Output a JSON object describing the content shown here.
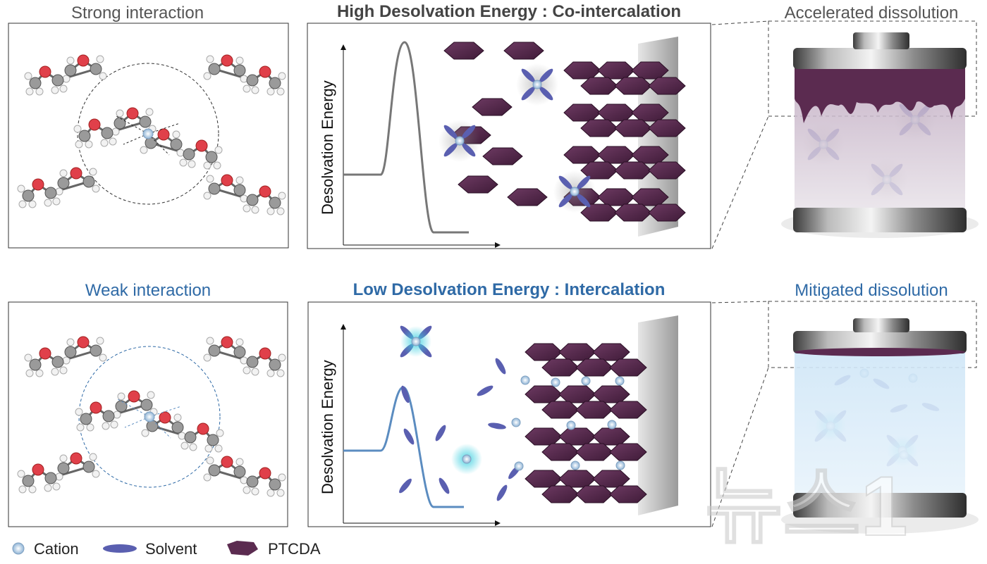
{
  "top": {
    "left_title": "Strong interaction",
    "center_title": "High Desolvation Energy : Co-intercalation",
    "right_title": "Accelerated dissolution",
    "axis_label": "Desolvation  Energy"
  },
  "bottom": {
    "left_title": "Weak interaction",
    "center_title": "Low Desolvation Energy : Intercalation",
    "right_title": "Mitigated dissolution",
    "axis_label": "Desolvation  Energy"
  },
  "legend": {
    "cation": "Cation",
    "solvent": "Solvent",
    "ptcda": "PTCDA"
  },
  "watermark": "뉴스1",
  "colors": {
    "ptcda": "#5b2b50",
    "solvent": "#5a5fb0",
    "cation": "#bcd6ee",
    "accent_blue": "#2f6aa6",
    "curve_gray": "#777777",
    "curve_blue": "#5b8cc0"
  }
}
